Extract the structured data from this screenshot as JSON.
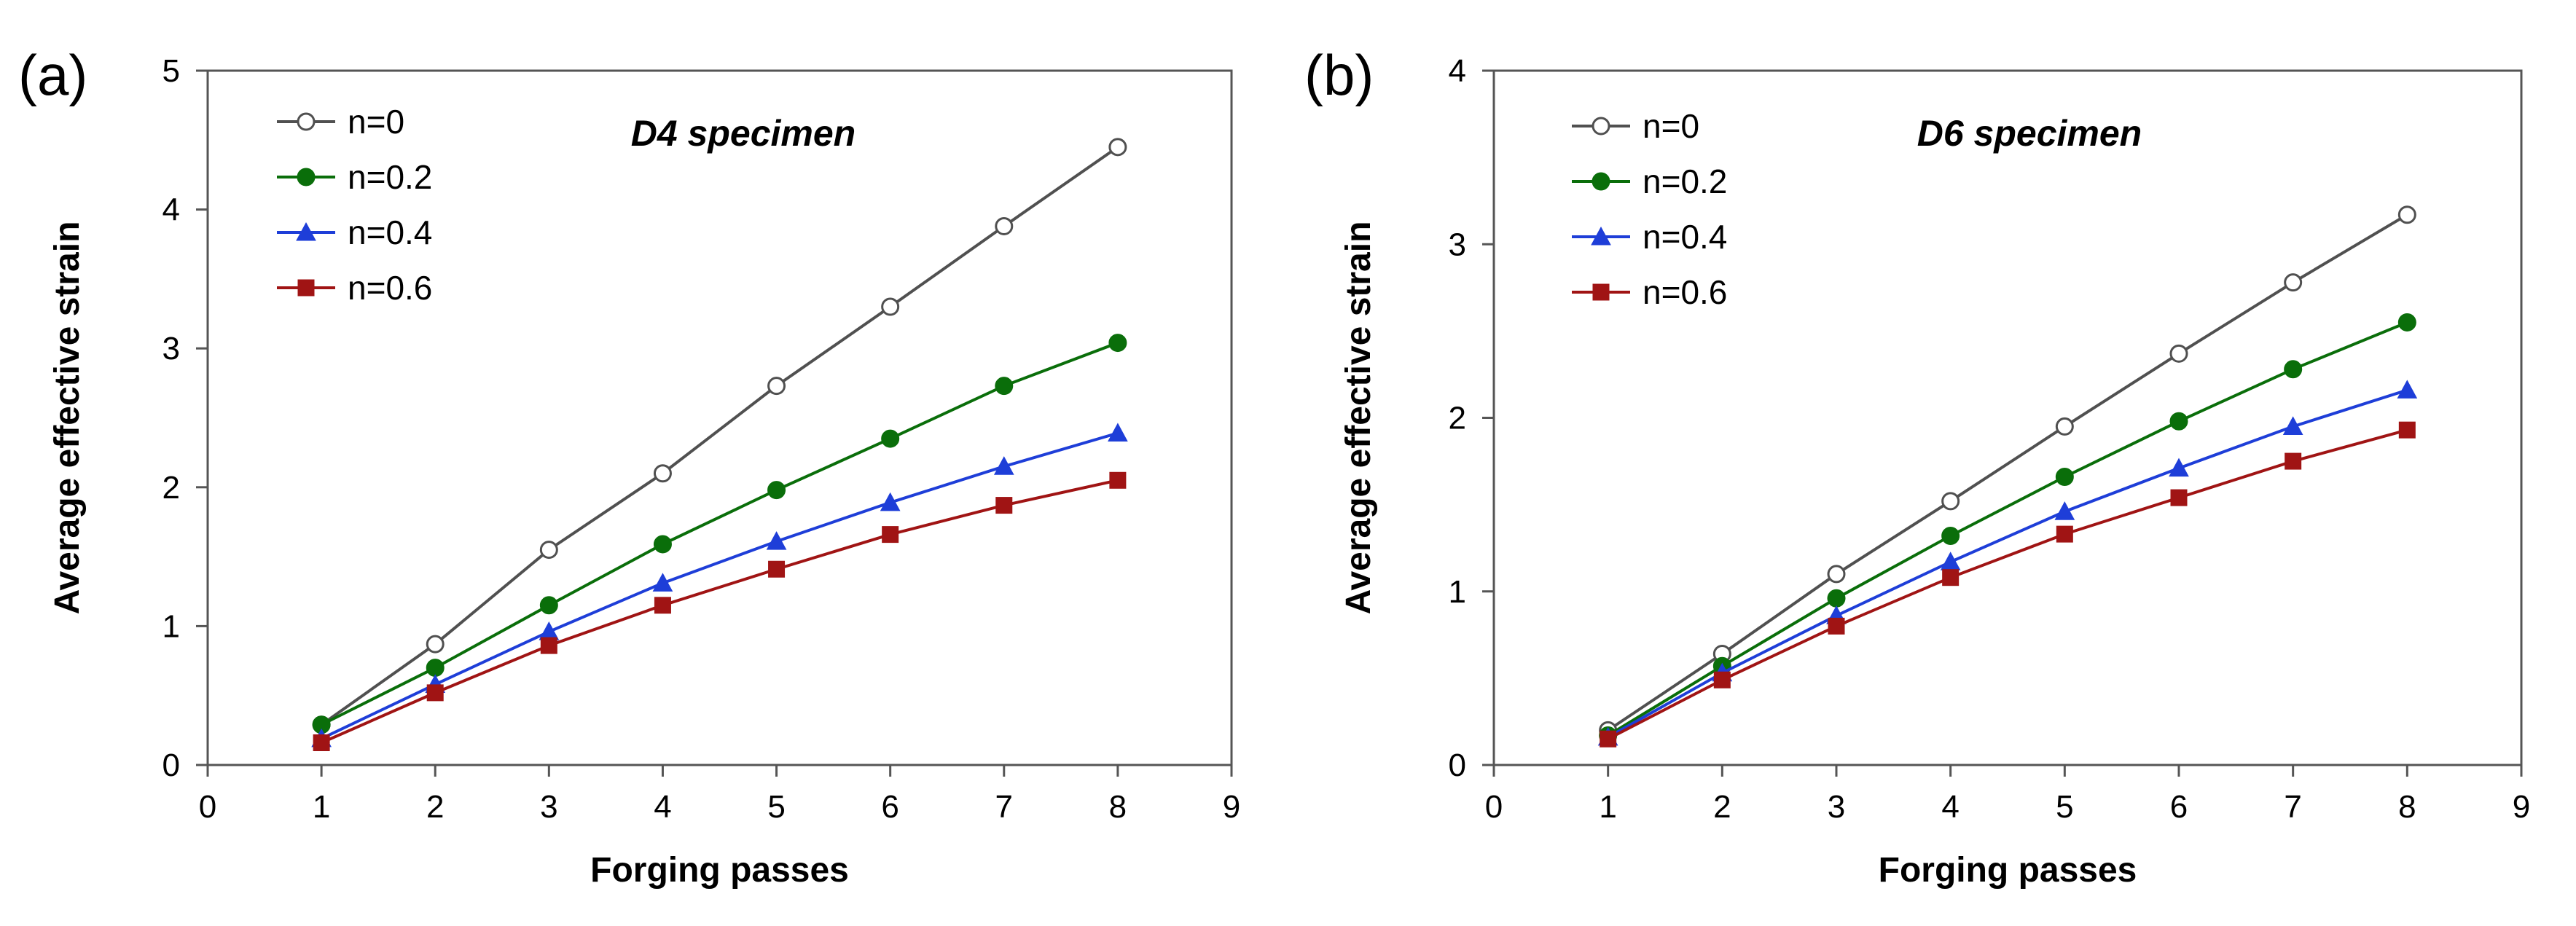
{
  "chart_data": [
    {
      "type": "line",
      "panel_label": "(a)",
      "annotation": "D4 specimen",
      "xlabel": "Forging passes",
      "ylabel": "Average effective strain",
      "xlim": [
        0,
        9
      ],
      "ylim": [
        0,
        5
      ],
      "xticks": [
        "0",
        "1",
        "2",
        "3",
        "4",
        "5",
        "6",
        "7",
        "8",
        "9"
      ],
      "yticks": [
        "0",
        "1",
        "2",
        "3",
        "4",
        "5"
      ],
      "grid": false,
      "legend_position": "top-left",
      "x": [
        1,
        2,
        3,
        4,
        5,
        6,
        7,
        8
      ],
      "series": [
        {
          "name": "n=0",
          "values": [
            0.29,
            0.87,
            1.55,
            2.1,
            2.73,
            3.3,
            3.88,
            4.45
          ],
          "color": "#505050",
          "marker": "open-circle"
        },
        {
          "name": "n=0.2",
          "values": [
            0.29,
            0.7,
            1.15,
            1.59,
            1.98,
            2.35,
            2.73,
            3.04
          ],
          "color": "#0a6e0a",
          "marker": "circle"
        },
        {
          "name": "n=0.4",
          "values": [
            0.19,
            0.58,
            0.96,
            1.31,
            1.61,
            1.89,
            2.15,
            2.39
          ],
          "color": "#1e3ed8",
          "marker": "triangle"
        },
        {
          "name": "n=0.6",
          "values": [
            0.16,
            0.52,
            0.86,
            1.15,
            1.41,
            1.66,
            1.87,
            2.05
          ],
          "color": "#a01414",
          "marker": "square"
        }
      ]
    },
    {
      "type": "line",
      "panel_label": "(b)",
      "annotation": "D6 specimen",
      "xlabel": "Forging passes",
      "ylabel": "Average effective strain",
      "xlim": [
        0,
        9
      ],
      "ylim": [
        0,
        4
      ],
      "xticks": [
        "0",
        "1",
        "2",
        "3",
        "4",
        "5",
        "6",
        "7",
        "8",
        "9"
      ],
      "yticks": [
        "0",
        "1",
        "2",
        "3",
        "4"
      ],
      "grid": false,
      "legend_position": "top-left",
      "x": [
        1,
        2,
        3,
        4,
        5,
        6,
        7,
        8
      ],
      "series": [
        {
          "name": "n=0",
          "values": [
            0.2,
            0.64,
            1.1,
            1.52,
            1.95,
            2.37,
            2.78,
            3.17
          ],
          "color": "#505050",
          "marker": "open-circle"
        },
        {
          "name": "n=0.2",
          "values": [
            0.17,
            0.57,
            0.96,
            1.32,
            1.66,
            1.98,
            2.28,
            2.55
          ],
          "color": "#0a6e0a",
          "marker": "circle"
        },
        {
          "name": "n=0.4",
          "values": [
            0.16,
            0.53,
            0.86,
            1.17,
            1.46,
            1.71,
            1.95,
            2.16
          ],
          "color": "#1e3ed8",
          "marker": "triangle"
        },
        {
          "name": "n=0.6",
          "values": [
            0.15,
            0.49,
            0.8,
            1.08,
            1.33,
            1.54,
            1.75,
            1.93
          ],
          "color": "#a01414",
          "marker": "square"
        }
      ]
    }
  ]
}
